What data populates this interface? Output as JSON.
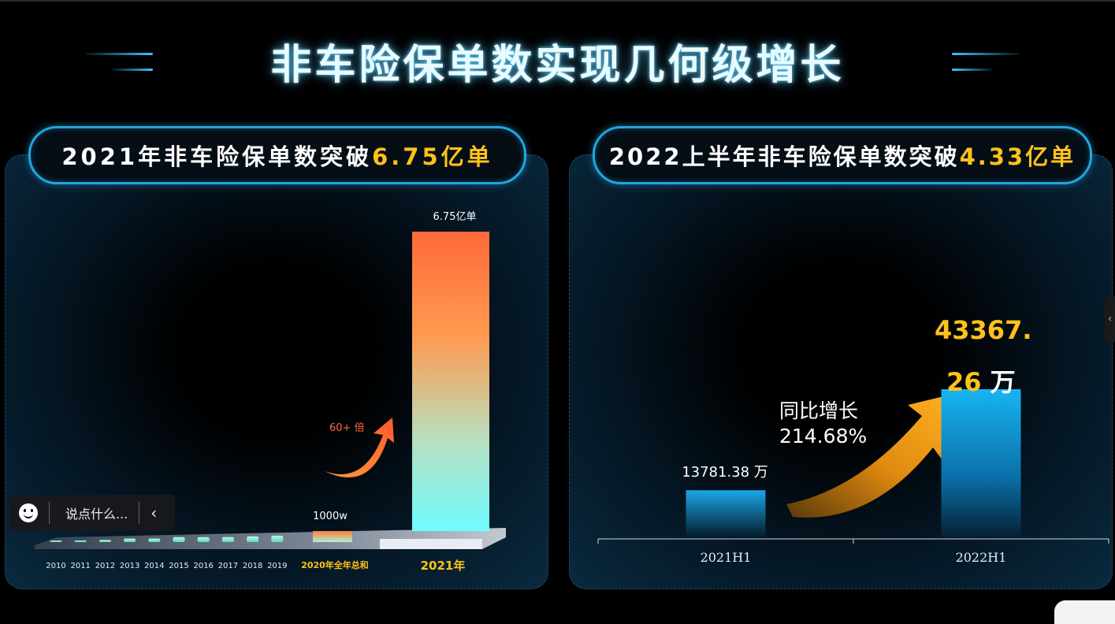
{
  "title": "非车险保单数实现几何级增长",
  "colors": {
    "accent_cyan": "#20a6e0",
    "highlight": "#ffc21a",
    "bar_top": "#ff6a3a",
    "bar_bottom": "#6ffcff"
  },
  "left_panel": {
    "heading_prefix": "2021年非车险保单数突破",
    "heading_value": "6.75亿单",
    "multiplier_label": "60+ 倍"
  },
  "right_panel": {
    "heading_prefix": "2022上半年非车险保单数突破",
    "heading_value": "4.33亿单",
    "growth_label": "同比增长",
    "growth_value": "214.68%"
  },
  "chat": {
    "placeholder": "说点什么..."
  },
  "chart_data": [
    {
      "type": "bar",
      "categories": [
        "2010",
        "2011",
        "2012",
        "2013",
        "2014",
        "2015",
        "2016",
        "2017",
        "2018",
        "2019",
        "2020年全年总和",
        "2021年"
      ],
      "values": [
        0.2,
        0.2,
        0.3,
        0.5,
        0.5,
        0.7,
        0.7,
        0.7,
        0.8,
        0.9,
        0.1,
        6.75
      ],
      "unit": "亿单",
      "data_labels": {
        "10": "1000w",
        "11": "6.75亿单"
      },
      "highlight_categories": [
        "2020年全年总和",
        "2021年"
      ]
    },
    {
      "type": "bar",
      "categories": [
        "2021H1",
        "2022H1"
      ],
      "values": [
        13781.38,
        43367.26
      ],
      "unit": "万",
      "data_labels": [
        "13781.38 万",
        "43367.26 万"
      ]
    }
  ]
}
